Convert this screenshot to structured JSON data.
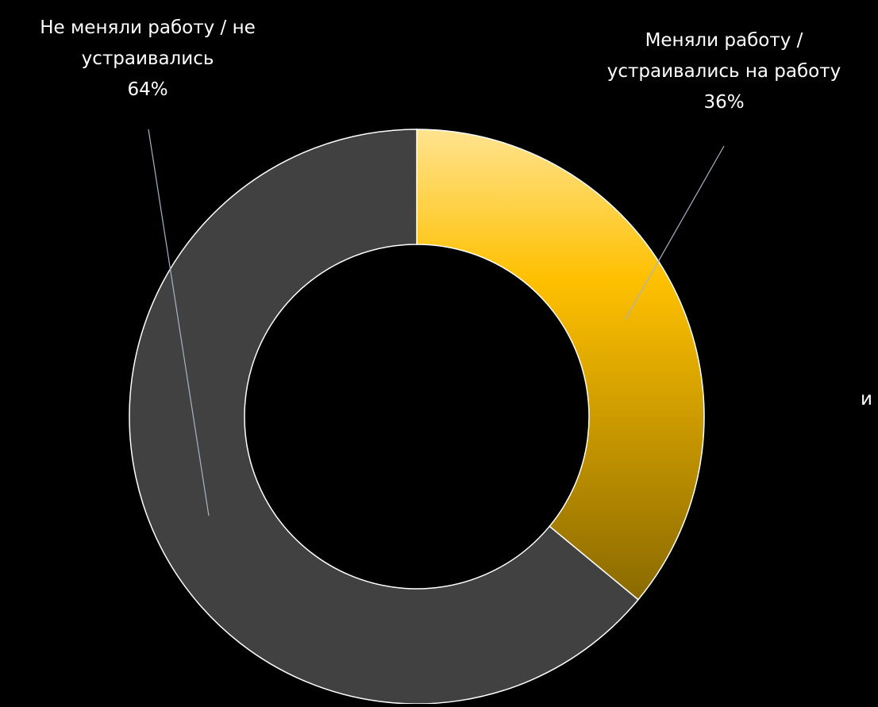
{
  "chart_data": {
    "type": "pie",
    "variant": "donut",
    "categories": [
      "Меняли работу / устраивались на работу",
      "Не меняли работу / не устраивались"
    ],
    "values": [
      36,
      64
    ],
    "unit": "%",
    "title": "",
    "slices": [
      {
        "label_lines": [
          "Меняли работу /",
          "устраивались на работу"
        ],
        "value": 36,
        "value_label": "36%",
        "color": "#FFC000",
        "color_light": "#FFE38F",
        "color_dark": "#8A6A00"
      },
      {
        "label_lines": [
          "Не меняли работу / не",
          "устраивались"
        ],
        "value": 64,
        "value_label": "64%",
        "color": "#414141"
      }
    ],
    "clipped_text": "и",
    "background": "#000000",
    "separator_color": "#FFFFFF",
    "leader_line_color": "#A6B4C4",
    "legend": "none",
    "grid": false
  }
}
